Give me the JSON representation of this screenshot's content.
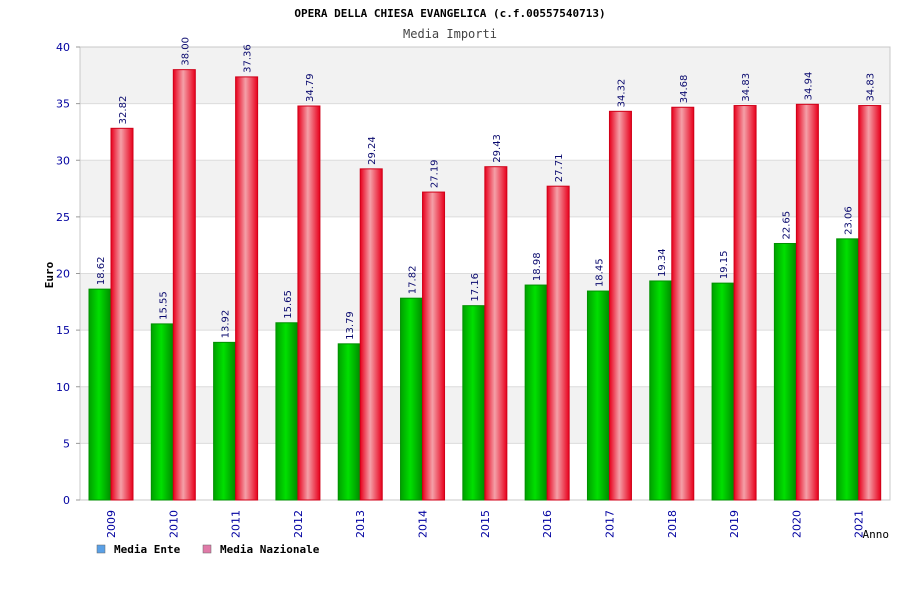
{
  "title": "OPERA DELLA CHIESA EVANGELICA (c.f.00557540713)",
  "chart_data": {
    "type": "bar",
    "title": "Media Importi",
    "xlabel": "Anno",
    "ylabel": "Euro",
    "ylim": [
      0,
      40
    ],
    "yticks": [
      0,
      5,
      10,
      15,
      20,
      25,
      30,
      35,
      40
    ],
    "grid": true,
    "legend_placement": "bottom-left",
    "categories": [
      "2009",
      "2010",
      "2011",
      "2012",
      "2013",
      "2014",
      "2015",
      "2016",
      "2017",
      "2018",
      "2019",
      "2020",
      "2021"
    ],
    "series": [
      {
        "name": "Media Ente",
        "color": "#00b400",
        "legend_color": "#5aa0e6",
        "values": [
          18.62,
          15.55,
          13.92,
          15.65,
          13.79,
          17.82,
          17.16,
          18.98,
          18.45,
          19.34,
          19.15,
          22.65,
          23.06
        ],
        "labels": [
          "18.62",
          "15.55",
          "13.92",
          "15.65",
          "13.79",
          "17.82",
          "17.16",
          "18.98",
          "18.45",
          "19.34",
          "19.15",
          "22.65",
          "23.06"
        ]
      },
      {
        "name": "Media Nazionale",
        "color": "#f01428",
        "legend_color": "#e07aa8",
        "values": [
          32.82,
          38.0,
          37.36,
          34.79,
          29.24,
          27.19,
          29.43,
          27.71,
          34.32,
          34.68,
          34.83,
          34.94,
          34.83
        ],
        "labels": [
          "32.82",
          "38.00",
          "37.36",
          "34.79",
          "29.24",
          "27.19",
          "29.43",
          "27.71",
          "34.32",
          "34.68",
          "34.83",
          "34.94",
          "34.83"
        ]
      }
    ]
  }
}
